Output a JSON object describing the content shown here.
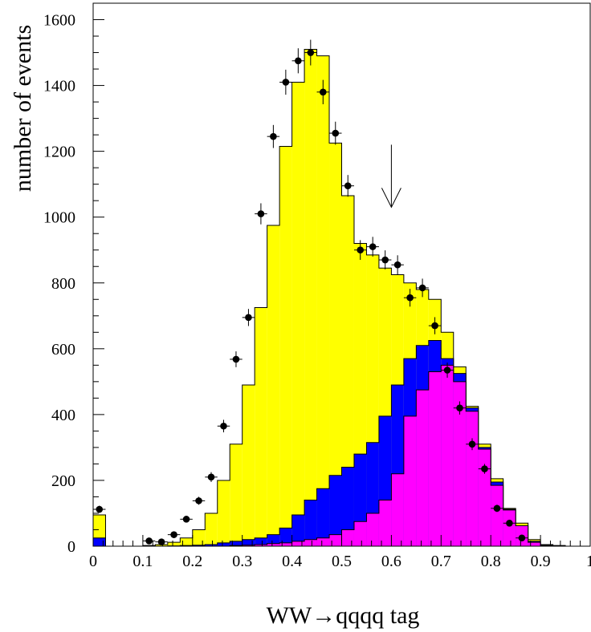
{
  "chart_data": {
    "type": "histogram",
    "xlabel": "WW→qqqq tag",
    "ylabel": "number of events",
    "xlim": [
      0,
      1
    ],
    "ylim": [
      0,
      1650
    ],
    "bin_width": 0.025,
    "x_ticks": [
      0,
      0.1,
      0.2,
      0.3,
      0.4,
      0.5,
      0.6,
      0.7,
      0.8,
      0.9,
      1
    ],
    "x_tick_labels": [
      "0",
      "0.1",
      "0.2",
      "0.3",
      "0.4",
      "0.5",
      "0.6",
      "0.7",
      "0.8",
      "0.9",
      "1"
    ],
    "y_ticks": [
      0,
      200,
      400,
      600,
      800,
      1000,
      1200,
      1400,
      1600
    ],
    "y_tick_labels": [
      "0",
      "200",
      "400",
      "600",
      "800",
      "1000",
      "1200",
      "1400",
      "1600"
    ],
    "bin_low_edges": [
      0,
      0.025,
      0.05,
      0.075,
      0.1,
      0.125,
      0.15,
      0.175,
      0.2,
      0.225,
      0.25,
      0.275,
      0.3,
      0.325,
      0.35,
      0.375,
      0.4,
      0.425,
      0.45,
      0.475,
      0.5,
      0.525,
      0.55,
      0.575,
      0.6,
      0.625,
      0.65,
      0.675,
      0.7,
      0.725,
      0.75,
      0.775,
      0.8,
      0.825,
      0.85,
      0.875,
      0.9,
      0.925,
      0.95,
      0.975
    ],
    "series": [
      {
        "kind": "stacked-fill",
        "color": "#ffff00",
        "values": [
          95,
          0,
          0,
          0,
          2,
          5,
          12,
          25,
          50,
          100,
          200,
          310,
          490,
          725,
          975,
          1215,
          1410,
          1510,
          1490,
          1225,
          1065,
          920,
          885,
          845,
          825,
          800,
          780,
          750,
          650,
          545,
          425,
          310,
          205,
          115,
          70,
          20,
          5,
          2,
          0,
          0
        ]
      },
      {
        "kind": "stacked-fill",
        "color": "#0000ff",
        "values": [
          25,
          0,
          0,
          0,
          0,
          0,
          1,
          2,
          3,
          5,
          10,
          15,
          20,
          25,
          35,
          55,
          95,
          140,
          175,
          215,
          240,
          280,
          315,
          395,
          490,
          570,
          610,
          625,
          570,
          525,
          420,
          300,
          195,
          112,
          62,
          15,
          3,
          0,
          0,
          0
        ]
      },
      {
        "kind": "stacked-fill",
        "color": "#ff00ff",
        "values": [
          0,
          0,
          0,
          0,
          0,
          0,
          0,
          0,
          0,
          0,
          0,
          2,
          3,
          5,
          8,
          10,
          15,
          20,
          25,
          35,
          50,
          75,
          100,
          140,
          220,
          395,
          475,
          530,
          550,
          500,
          410,
          295,
          185,
          110,
          62,
          12,
          2,
          0,
          0,
          0
        ]
      }
    ],
    "data_points": {
      "x": [
        0.0125,
        0.1125,
        0.1375,
        0.1625,
        0.1875,
        0.2125,
        0.2375,
        0.2625,
        0.2875,
        0.3125,
        0.3375,
        0.3625,
        0.3875,
        0.4125,
        0.4375,
        0.4625,
        0.4875,
        0.5125,
        0.5375,
        0.5625,
        0.5875,
        0.6125,
        0.6375,
        0.6625,
        0.6875,
        0.7125,
        0.7375,
        0.7625,
        0.7875,
        0.8125,
        0.8375,
        0.8625
      ],
      "y": [
        112,
        16,
        13,
        35,
        82,
        138,
        210,
        365,
        568,
        695,
        1010,
        1245,
        1410,
        1475,
        1500,
        1380,
        1255,
        1095,
        900,
        910,
        870,
        855,
        755,
        785,
        670,
        535,
        420,
        310,
        235,
        115,
        70,
        25
      ],
      "err": [
        11,
        4,
        4,
        6,
        9,
        12,
        15,
        19,
        24,
        26,
        32,
        35,
        38,
        38,
        39,
        37,
        35,
        33,
        30,
        30,
        29,
        29,
        27,
        28,
        26,
        23,
        20,
        18,
        15,
        11,
        8,
        5
      ]
    },
    "annotations": [
      {
        "kind": "arrow-down",
        "x": 0.6,
        "y_top": 1220,
        "y_tip": 1030
      }
    ]
  }
}
